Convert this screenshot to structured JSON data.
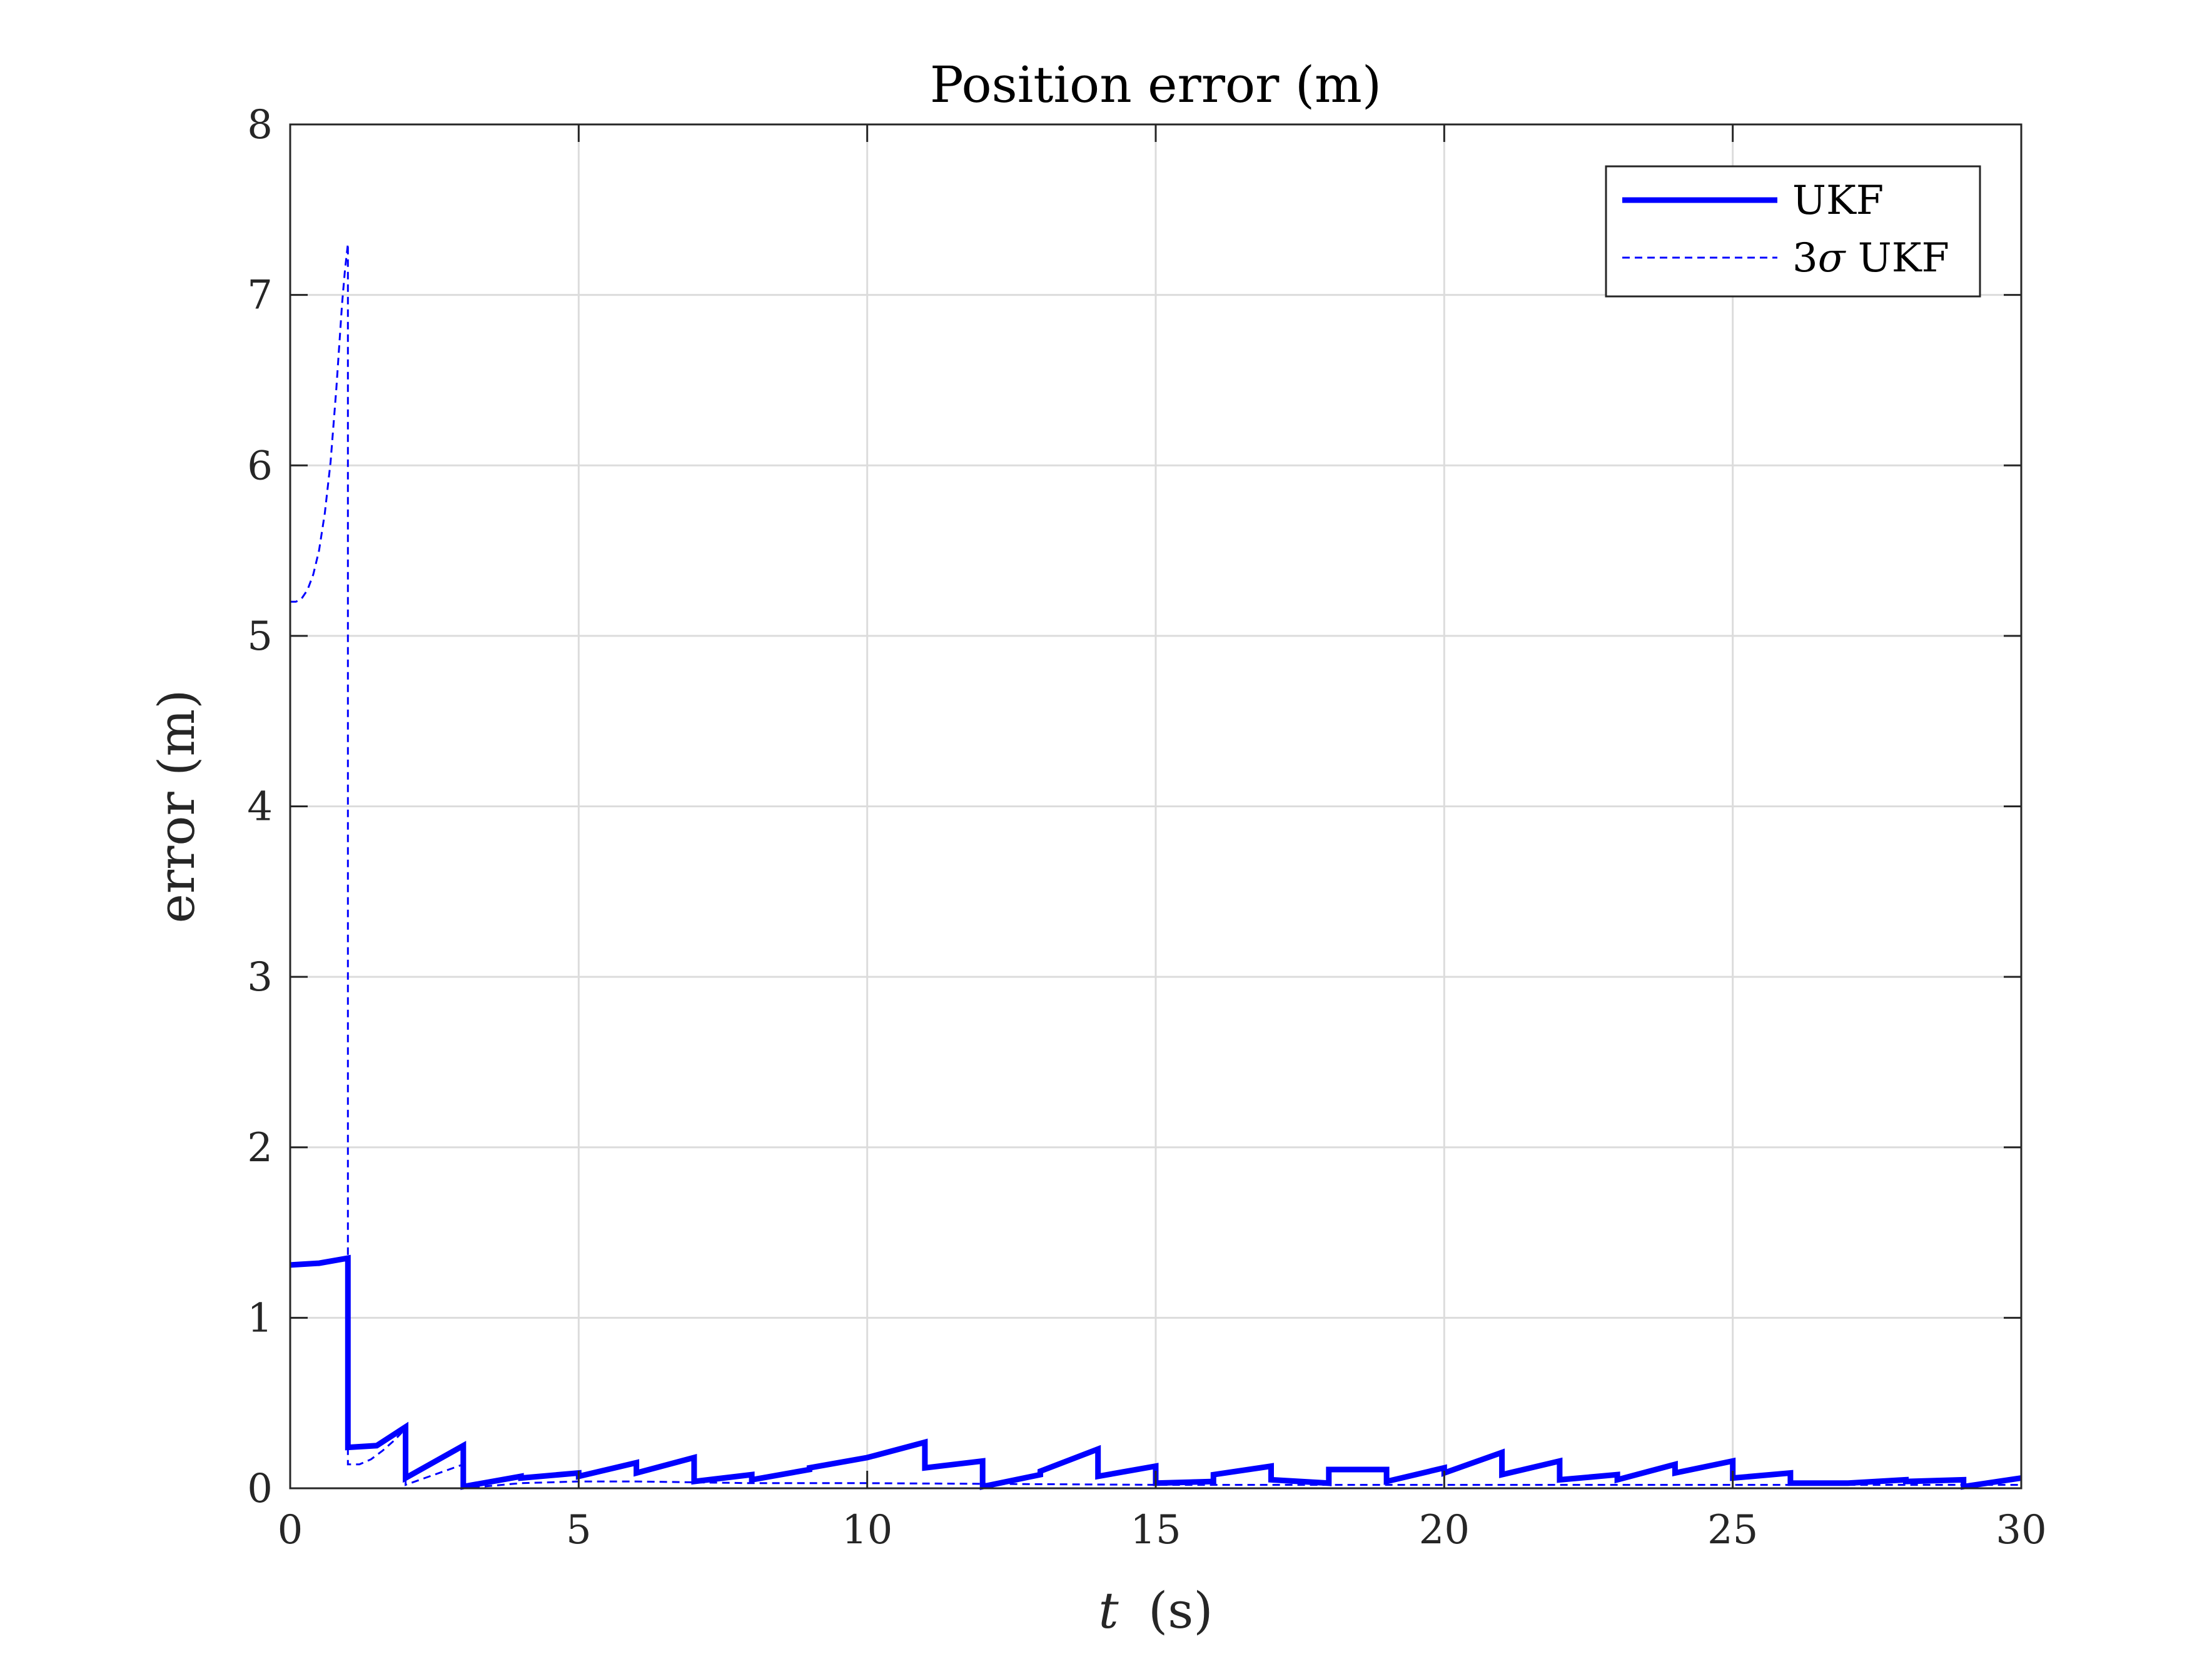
{
  "chart_data": {
    "type": "line",
    "title": "Position error (m)",
    "xlabel_var": "t",
    "xlabel_unit": "(s)",
    "ylabel": "error (m)",
    "xlim": [
      0,
      30
    ],
    "ylim": [
      0,
      8
    ],
    "xticks": [
      "0",
      "5",
      "10",
      "15",
      "20",
      "25",
      "30"
    ],
    "yticks": [
      "0",
      "1",
      "2",
      "3",
      "4",
      "5",
      "6",
      "7",
      "8"
    ],
    "grid": true,
    "legend_position": "top-right",
    "colors": {
      "series": "#0000ff",
      "axis": "#262626",
      "grid": "#dcdcdc"
    },
    "series": [
      {
        "name": "UKF",
        "style": "solid",
        "x": [
          0,
          0.5,
          1.0,
          1.0,
          1.5,
          2.0,
          2.0,
          3.0,
          3.0,
          4.0,
          4.0,
          5.0,
          5.0,
          6.0,
          6.0,
          7.0,
          7.0,
          8.0,
          8.0,
          9.0,
          9.0,
          10.0,
          11.0,
          11.0,
          12.0,
          12.0,
          13.0,
          13.0,
          14.0,
          14.0,
          15.0,
          15.0,
          16.0,
          16.0,
          17.0,
          17.0,
          18.0,
          18.0,
          19.0,
          19.0,
          20.0,
          20.0,
          21.0,
          21.0,
          22.0,
          22.0,
          23.0,
          23.0,
          24.0,
          24.0,
          25.0,
          25.0,
          26.0,
          26.0,
          27.0,
          28.0,
          28.0,
          29.0,
          29.0,
          30.0
        ],
        "values": [
          1.31,
          1.32,
          1.35,
          0.24,
          0.25,
          0.36,
          0.06,
          0.25,
          0.01,
          0.07,
          0.06,
          0.09,
          0.07,
          0.15,
          0.09,
          0.18,
          0.04,
          0.08,
          0.05,
          0.11,
          0.12,
          0.18,
          0.27,
          0.12,
          0.16,
          0.01,
          0.08,
          0.1,
          0.23,
          0.07,
          0.13,
          0.03,
          0.04,
          0.08,
          0.13,
          0.05,
          0.03,
          0.11,
          0.11,
          0.04,
          0.12,
          0.09,
          0.21,
          0.08,
          0.16,
          0.05,
          0.08,
          0.05,
          0.14,
          0.09,
          0.16,
          0.06,
          0.09,
          0.03,
          0.03,
          0.05,
          0.04,
          0.05,
          0.01,
          0.06
        ]
      },
      {
        "name": "3σ UKF",
        "style": "dashed",
        "x": [
          0,
          0.1,
          0.2,
          0.3,
          0.4,
          0.5,
          0.6,
          0.7,
          0.8,
          0.85,
          0.9,
          0.95,
          1.0,
          1.0,
          1.2,
          1.4,
          1.6,
          1.8,
          2.0,
          2.0,
          2.5,
          3.0,
          3.0,
          4.0,
          5.0,
          6.0,
          8.0,
          10.0,
          15.0,
          20.0,
          25.0,
          30.0
        ],
        "values": [
          5.2,
          5.2,
          5.22,
          5.27,
          5.36,
          5.5,
          5.72,
          6.02,
          6.45,
          6.7,
          6.95,
          7.15,
          7.3,
          0.14,
          0.14,
          0.17,
          0.22,
          0.28,
          0.35,
          0.02,
          0.08,
          0.14,
          0.0,
          0.03,
          0.04,
          0.04,
          0.03,
          0.03,
          0.02,
          0.02,
          0.02,
          0.02
        ]
      }
    ]
  },
  "legend": {
    "sigma_prefix": "3",
    "sigma_symbol": "σ",
    "sigma_suffix": " UKF"
  }
}
